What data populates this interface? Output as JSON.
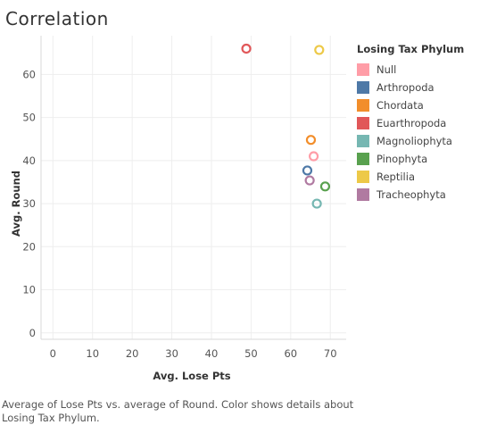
{
  "title": "Correlation",
  "caption": "Average of Lose Pts vs. average of Round.  Color shows details about Losing Tax Phylum.",
  "legend": {
    "title": "Losing Tax Phylum"
  },
  "chart_data": {
    "type": "scatter",
    "xlabel": "Avg. Lose Pts",
    "ylabel": "Avg. Round",
    "xlim": [
      -3,
      74
    ],
    "ylim": [
      -1.5,
      69
    ],
    "x_ticks": [
      0,
      10,
      20,
      30,
      40,
      50,
      60,
      70
    ],
    "y_ticks": [
      0,
      10,
      20,
      30,
      40,
      50,
      60
    ],
    "grid": true,
    "legend_position": "right",
    "marker": "hollow-circle",
    "series": [
      {
        "name": "Null",
        "color": "#FF9DA7",
        "x": 65.8,
        "y": 41
      },
      {
        "name": "Arthropoda",
        "color": "#4E79A7",
        "x": 64.2,
        "y": 37.7
      },
      {
        "name": "Chordata",
        "color": "#F28E2B",
        "x": 65.1,
        "y": 44.8
      },
      {
        "name": "Euarthropoda",
        "color": "#E15759",
        "x": 48.8,
        "y": 66
      },
      {
        "name": "Magnoliophyta",
        "color": "#76B7B2",
        "x": 66.6,
        "y": 30
      },
      {
        "name": "Pinophyta",
        "color": "#59A14F",
        "x": 68.7,
        "y": 34
      },
      {
        "name": "Reptilia",
        "color": "#EDC948",
        "x": 67.2,
        "y": 65.7
      },
      {
        "name": "Tracheophyta",
        "color": "#B07AA1",
        "x": 64.8,
        "y": 35.4
      }
    ]
  }
}
